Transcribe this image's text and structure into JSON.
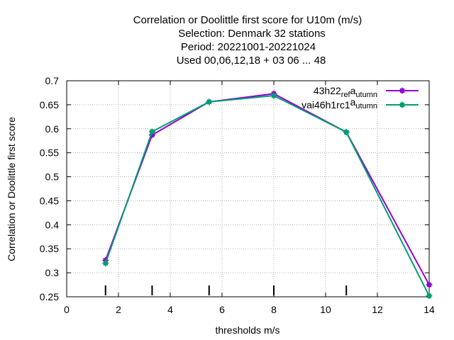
{
  "chart_data": {
    "type": "line",
    "title_lines": [
      "Correlation or Doolittle first score  for U10m (m/s)",
      "Selection: Denmark     32 stations",
      "Period: 20221001-20221024",
      "Used  00,06,12,18  + 03 06 ... 48"
    ],
    "xlabel": "thresholds m/s",
    "ylabel": "Correlation or Doolittle first score",
    "xlim": [
      0,
      14
    ],
    "ylim": [
      0.25,
      0.7
    ],
    "x_ticks": [
      0,
      2,
      4,
      6,
      8,
      10,
      12,
      14
    ],
    "y_ticks": [
      0.25,
      0.3,
      0.35,
      0.4,
      0.45,
      0.5,
      0.55,
      0.6,
      0.65,
      0.7
    ],
    "grid": true,
    "legend_position": "top-right",
    "threshold_markers": [
      1.5,
      3.3,
      5.5,
      8.0,
      10.8
    ],
    "series": [
      {
        "name_main": "43h22",
        "name_sub1": "ref",
        "name_mid": "a",
        "name_sub2": "utumn",
        "color": "#9400d3",
        "x": [
          1.5,
          3.3,
          5.5,
          8.0,
          10.8,
          14.0
        ],
        "y": [
          0.326,
          0.587,
          0.656,
          0.673,
          0.593,
          0.275
        ]
      },
      {
        "name_main": "vai46h1rc1",
        "name_sub1": "",
        "name_mid": "a",
        "name_sub2": "utumn",
        "color": "#009e73",
        "x": [
          1.5,
          3.3,
          5.5,
          8.0,
          10.8,
          14.0
        ],
        "y": [
          0.32,
          0.594,
          0.656,
          0.669,
          0.593,
          0.252
        ]
      }
    ]
  }
}
